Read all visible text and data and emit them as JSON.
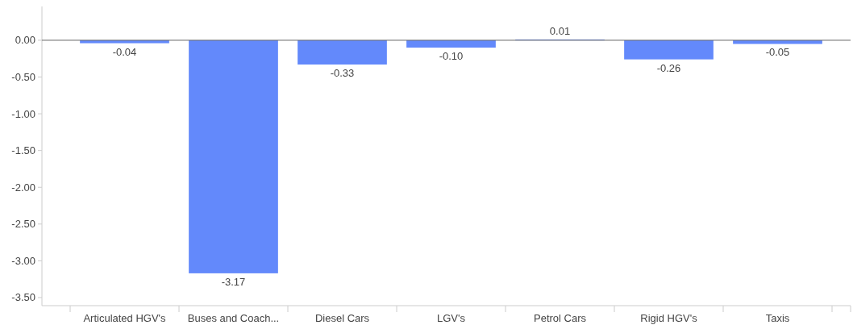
{
  "chart_data": {
    "type": "bar",
    "categories": [
      "Articulated HGV's",
      "Buses and Coach...",
      "Diesel Cars",
      "LGV's",
      "Petrol Cars",
      "Rigid HGV's",
      "Taxis"
    ],
    "values": [
      -0.04,
      -3.17,
      -0.33,
      -0.1,
      0.01,
      -0.26,
      -0.05
    ],
    "value_labels": [
      "-0.04",
      "-3.17",
      "-0.33",
      "-0.10",
      "0.01",
      "-0.26",
      "-0.05"
    ],
    "color": "#6389fb",
    "ylim": [
      -3.61,
      0.46
    ],
    "yticks": [
      {
        "value": 0,
        "label": "0.00"
      },
      {
        "value": -0.5,
        "label": "-0.50"
      },
      {
        "value": -1,
        "label": "-1.00"
      },
      {
        "value": -1.5,
        "label": "-1.50"
      },
      {
        "value": -2,
        "label": "-2.00"
      },
      {
        "value": -2.5,
        "label": "-2.50"
      },
      {
        "value": -3,
        "label": "-3.00"
      },
      {
        "value": -3.5,
        "label": "-3.50"
      }
    ]
  }
}
